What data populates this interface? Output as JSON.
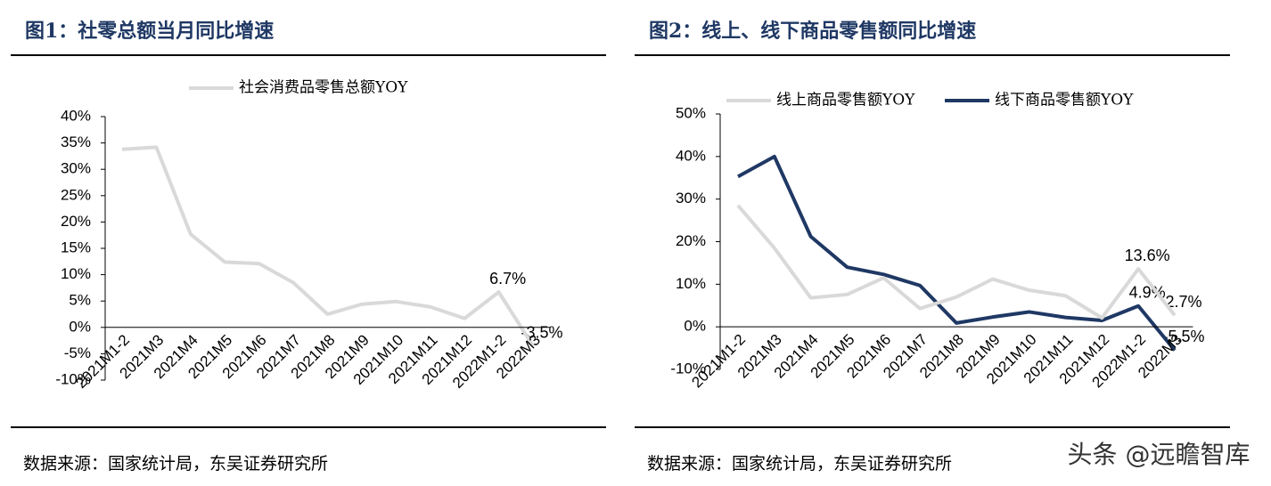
{
  "chart_data": [
    {
      "type": "line",
      "title": "图1：社零总额当月同比增速",
      "source": "数据来源：国家统计局，东吴证券研究所",
      "categories": [
        "2021M1-2",
        "2021M3",
        "2021M4",
        "2021M5",
        "2021M6",
        "2021M7",
        "2021M8",
        "2021M9",
        "2021M10",
        "2021M11",
        "2021M12",
        "2022M1-2",
        "2022M3"
      ],
      "series": [
        {
          "name": "社会消费品零售总额YOY",
          "color": "#d9d9d9",
          "values": [
            33.8,
            34.2,
            17.7,
            12.4,
            12.1,
            8.5,
            2.5,
            4.4,
            4.9,
            3.9,
            1.7,
            6.7,
            -3.5
          ],
          "value_labels": [
            null,
            null,
            null,
            null,
            null,
            null,
            null,
            null,
            null,
            null,
            null,
            "6.7%",
            "-3.5%"
          ]
        }
      ],
      "ylim": [
        -10,
        40
      ],
      "yticks": [
        {
          "value": -10,
          "label": "-10%"
        },
        {
          "value": -5,
          "label": "-5%"
        },
        {
          "value": 0,
          "label": "0%"
        },
        {
          "value": 5,
          "label": "5%"
        },
        {
          "value": 10,
          "label": "10%"
        },
        {
          "value": 15,
          "label": "15%"
        },
        {
          "value": 20,
          "label": "20%"
        },
        {
          "value": 25,
          "label": "25%"
        },
        {
          "value": 30,
          "label": "30%"
        },
        {
          "value": 35,
          "label": "35%"
        },
        {
          "value": 40,
          "label": "40%"
        }
      ]
    },
    {
      "type": "line",
      "title": "图2：线上、线下商品零售额同比增速",
      "source": "数据来源：国家统计局，东吴证券研究所",
      "categories": [
        "2021M1-2",
        "2021M3",
        "2021M4",
        "2021M5",
        "2021M6",
        "2021M7",
        "2021M8",
        "2021M9",
        "2021M10",
        "2021M11",
        "2021M12",
        "2022M1-2",
        "2022M3"
      ],
      "series": [
        {
          "name": "线上商品零售额YOY",
          "color": "#d9d9d9",
          "values": [
            28.5,
            18.5,
            6.8,
            7.6,
            11.5,
            4.3,
            7.0,
            11.2,
            8.6,
            7.3,
            2.1,
            13.6,
            2.7
          ],
          "value_labels": [
            null,
            null,
            null,
            null,
            null,
            null,
            null,
            null,
            null,
            null,
            null,
            "13.6%",
            "2.7%"
          ]
        },
        {
          "name": "线下商品零售额YOY",
          "color": "#1f3864",
          "values": [
            35.3,
            40,
            21.2,
            14,
            12.3,
            9.7,
            0.9,
            2.3,
            3.5,
            2.2,
            1.5,
            4.9,
            -5.5
          ],
          "value_labels": [
            null,
            null,
            null,
            null,
            null,
            null,
            null,
            null,
            null,
            null,
            null,
            "4.9%",
            "-5.5%"
          ]
        }
      ],
      "ylim": [
        -10,
        50
      ],
      "yticks": [
        {
          "value": -10,
          "label": "-10%"
        },
        {
          "value": 0,
          "label": "0%"
        },
        {
          "value": 10,
          "label": "10%"
        },
        {
          "value": 20,
          "label": "20%"
        },
        {
          "value": 30,
          "label": "30%"
        },
        {
          "value": 40,
          "label": "40%"
        },
        {
          "value": 50,
          "label": "50%"
        }
      ]
    }
  ],
  "watermark": "头条 @远瞻智库"
}
